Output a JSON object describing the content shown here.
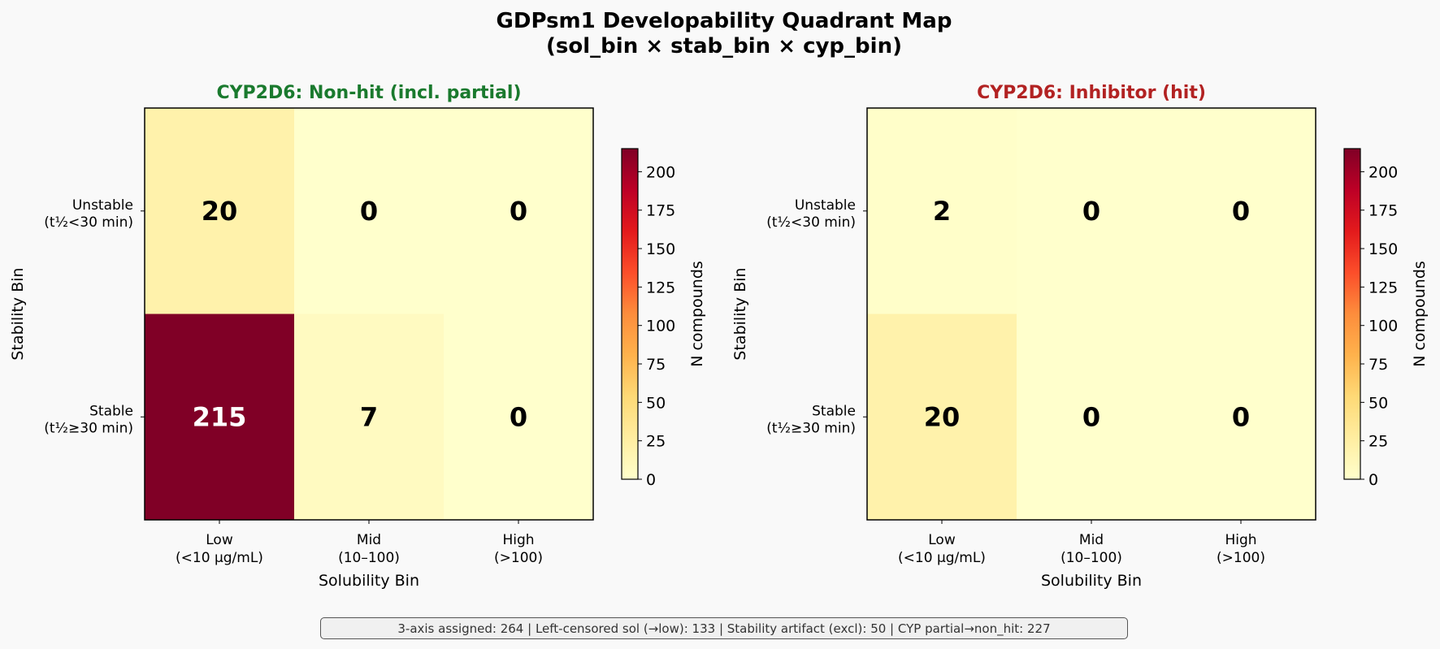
{
  "title_line1": "GDPsm1 Developability Quadrant Map",
  "title_line2": "(sol_bin × stab_bin × cyp_bin)",
  "footer": "3-axis assigned: 264  |  Left-censored sol (→low): 133  |  Stability artifact (excl): 50  |  CYP partial→non_hit: 227",
  "colors": {
    "left_title": "#1a7a2e",
    "right_title": "#b22222",
    "colormap": [
      "#ffffcc",
      "#ffeda0",
      "#fed976",
      "#feb24c",
      "#fd8d3c",
      "#fc4e2a",
      "#e31a1c",
      "#bd0026",
      "#800026"
    ]
  },
  "chart_data": [
    {
      "type": "heatmap",
      "title": "CYP2D6: Non-hit (incl. partial)",
      "xlabel": "Solubility Bin",
      "ylabel": "Stability Bin",
      "x_categories": [
        "Low\n(<10 µg/mL)",
        "Mid\n(10–100)",
        "High\n(>100)"
      ],
      "y_categories": [
        "Unstable\n(t½<30 min)",
        "Stable\n(t½≥30 min)"
      ],
      "values": [
        [
          20,
          0,
          0
        ],
        [
          215,
          7,
          0
        ]
      ],
      "colorbar_label": "N compounds",
      "colorbar_ticks": [
        0,
        25,
        50,
        75,
        100,
        125,
        150,
        175,
        200
      ],
      "vmin": 0,
      "vmax": 215
    },
    {
      "type": "heatmap",
      "title": "CYP2D6: Inhibitor (hit)",
      "xlabel": "Solubility Bin",
      "ylabel": "Stability Bin",
      "x_categories": [
        "Low\n(<10 µg/mL)",
        "Mid\n(10–100)",
        "High\n(>100)"
      ],
      "y_categories": [
        "Unstable\n(t½<30 min)",
        "Stable\n(t½≥30 min)"
      ],
      "values": [
        [
          2,
          0,
          0
        ],
        [
          20,
          0,
          0
        ]
      ],
      "colorbar_label": "N compounds",
      "colorbar_ticks": [
        0,
        25,
        50,
        75,
        100,
        125,
        150,
        175,
        200
      ],
      "vmin": 0,
      "vmax": 215
    }
  ]
}
